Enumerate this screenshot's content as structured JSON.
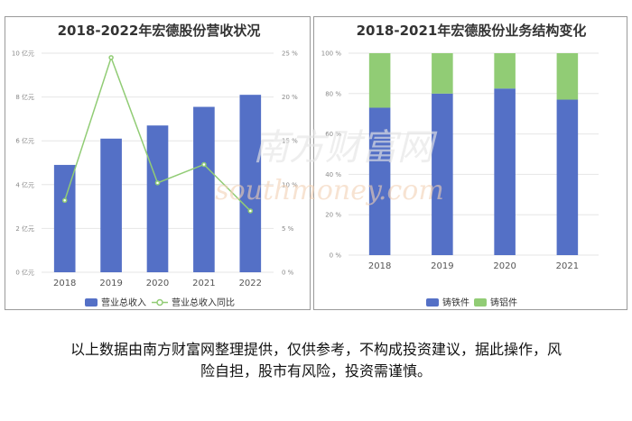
{
  "chart_data": [
    {
      "type": "bar",
      "title": "2018-2022年宏德股份营收状况",
      "categories": [
        "2018",
        "2019",
        "2020",
        "2021",
        "2022"
      ],
      "series": [
        {
          "name": "营业总收入",
          "type": "bar",
          "axis": "left",
          "values": [
            4.9,
            6.1,
            6.7,
            7.55,
            8.1
          ],
          "color": "#5470c6"
        },
        {
          "name": "营业总收入同比",
          "type": "line",
          "axis": "right",
          "values": [
            8.2,
            24.5,
            10.2,
            12.3,
            7.0
          ],
          "color": "#91cc75"
        }
      ],
      "left_axis": {
        "ylim": [
          0,
          10
        ],
        "ticks": [
          "0 亿元",
          "2 亿元",
          "4 亿元",
          "6 亿元",
          "8 亿元",
          "10 亿元"
        ]
      },
      "right_axis": {
        "ylim": [
          0,
          25
        ],
        "ticks": [
          "0 %",
          "5 %",
          "10 %",
          "15 %",
          "20 %",
          "25 %"
        ]
      },
      "grid": true,
      "legend_position": "bottom"
    },
    {
      "type": "bar",
      "stacked": true,
      "title": "2018-2021年宏德股份业务结构变化",
      "categories": [
        "2018",
        "2019",
        "2020",
        "2021"
      ],
      "series": [
        {
          "name": "铸铁件",
          "values": [
            73,
            80,
            82.5,
            77
          ],
          "color": "#5470c6"
        },
        {
          "name": "铸铝件",
          "values": [
            27,
            20,
            17.5,
            23
          ],
          "color": "#91cc75"
        }
      ],
      "axis": {
        "ylim": [
          0,
          100
        ],
        "ticks": [
          "0 %",
          "20 %",
          "40 %",
          "60 %",
          "80 %",
          "100 %"
        ]
      },
      "grid": true,
      "legend_position": "bottom"
    }
  ],
  "watermark": {
    "line1": "南方财富网",
    "line2": "southmoney.com"
  },
  "caption": {
    "line1": "以上数据由南方财富网整理提供，仅供参考，不构成投资建议，据此操作，风",
    "line2": "险自担，股市有风险，投资需谨慎。"
  }
}
